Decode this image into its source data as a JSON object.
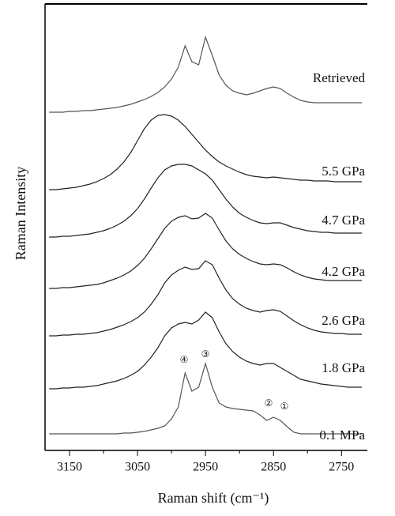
{
  "chart_data": {
    "type": "line",
    "xlabel": "Raman shift (cm⁻¹)",
    "ylabel": "Raman Intensity",
    "xlim": [
      3186,
      2712
    ],
    "xticks": [
      3150,
      3050,
      2950,
      2850,
      2750
    ],
    "xminor": [
      3100,
      3000,
      2900,
      2800
    ],
    "ylim": [
      0,
      565
    ],
    "annotations": [
      "④",
      "③",
      "②",
      "①"
    ],
    "x": [
      3180,
      3170,
      3160,
      3150,
      3140,
      3130,
      3120,
      3110,
      3100,
      3090,
      3080,
      3070,
      3060,
      3050,
      3040,
      3030,
      3020,
      3010,
      3000,
      2990,
      2980,
      2970,
      2960,
      2950,
      2940,
      2930,
      2920,
      2910,
      2900,
      2890,
      2880,
      2870,
      2860,
      2850,
      2840,
      2830,
      2820,
      2810,
      2800,
      2790,
      2780,
      2770,
      2760,
      2750,
      2740,
      2730,
      2720
    ],
    "series": [
      {
        "name": "Retrieved",
        "color": "#555555",
        "values": [
          428,
          428,
          428,
          429,
          429,
          430,
          430,
          431,
          432,
          433,
          434,
          436,
          438,
          441,
          444,
          448,
          453,
          460,
          470,
          485,
          512,
          492,
          488,
          523,
          500,
          475,
          462,
          455,
          452,
          450,
          452,
          455,
          458,
          460,
          458,
          452,
          447,
          443,
          441,
          440,
          440,
          440,
          440,
          440,
          440,
          440,
          440
        ]
      },
      {
        "name": "5.5 GPa",
        "color": "#222222",
        "values": [
          330,
          330,
          331,
          332,
          333,
          335,
          337,
          340,
          344,
          349,
          356,
          365,
          377,
          392,
          407,
          418,
          424,
          425,
          423,
          418,
          410,
          400,
          390,
          380,
          372,
          365,
          360,
          356,
          352,
          349,
          347,
          346,
          345,
          346,
          345,
          344,
          343,
          342,
          342,
          341,
          341,
          341,
          340,
          340,
          340,
          340,
          340
        ]
      },
      {
        "name": "4.7 GPa",
        "color": "#222222",
        "values": [
          270,
          270,
          271,
          271,
          272,
          273,
          274,
          276,
          278,
          281,
          285,
          290,
          297,
          306,
          318,
          332,
          345,
          355,
          360,
          362,
          362,
          360,
          355,
          350,
          342,
          330,
          318,
          308,
          300,
          295,
          291,
          288,
          287,
          288,
          288,
          285,
          282,
          280,
          278,
          277,
          276,
          276,
          275,
          275,
          275,
          275,
          275
        ]
      },
      {
        "name": "4.2 GPa",
        "color": "#222222",
        "values": [
          205,
          205,
          206,
          206,
          207,
          208,
          209,
          210,
          212,
          215,
          218,
          222,
          227,
          234,
          243,
          255,
          268,
          281,
          290,
          295,
          297,
          293,
          294,
          300,
          294,
          279,
          265,
          255,
          248,
          243,
          239,
          236,
          235,
          236,
          235,
          231,
          226,
          222,
          219,
          217,
          216,
          215,
          215,
          215,
          215,
          215,
          215
        ]
      },
      {
        "name": "2.6 GPa",
        "color": "#222222",
        "values": [
          145,
          145,
          146,
          146,
          147,
          147,
          148,
          149,
          151,
          153,
          156,
          159,
          163,
          168,
          175,
          185,
          197,
          212,
          222,
          228,
          232,
          229,
          230,
          240,
          235,
          218,
          203,
          192,
          185,
          180,
          177,
          175,
          177,
          178,
          176,
          170,
          164,
          159,
          155,
          152,
          150,
          149,
          148,
          148,
          147,
          147,
          147
        ]
      },
      {
        "name": "1.8 GPa",
        "color": "#222222",
        "values": [
          78,
          78,
          79,
          79,
          80,
          80,
          81,
          82,
          84,
          86,
          88,
          91,
          95,
          100,
          108,
          118,
          130,
          145,
          155,
          160,
          162,
          160,
          165,
          175,
          168,
          150,
          135,
          125,
          118,
          113,
          110,
          108,
          110,
          110,
          105,
          100,
          95,
          90,
          88,
          86,
          84,
          83,
          82,
          81,
          80,
          80,
          80
        ]
      },
      {
        "name": "0.1 MPa",
        "color": "#555555",
        "values": [
          21,
          21,
          21,
          21,
          21,
          21,
          21,
          21,
          21,
          21,
          21,
          22,
          22,
          23,
          24,
          26,
          28,
          31,
          40,
          55,
          98,
          75,
          80,
          110,
          80,
          60,
          55,
          53,
          52,
          51,
          50,
          45,
          38,
          42,
          38,
          30,
          23,
          21,
          21,
          21,
          21,
          21,
          21,
          21,
          21,
          21,
          21
        ]
      }
    ]
  }
}
